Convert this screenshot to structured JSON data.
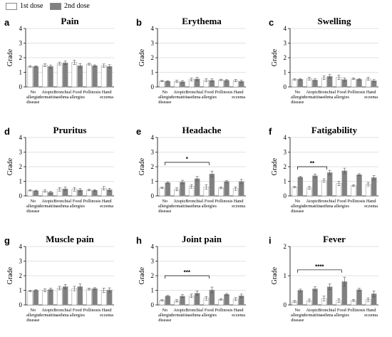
{
  "legend": {
    "dose1": {
      "label": "1st dose",
      "color": "#ffffff"
    },
    "dose2": {
      "label": "2nd dose",
      "color": "#808080"
    }
  },
  "categories": [
    "No allergic disease",
    "Atopic dermatitis",
    "Bronchial asthma",
    "Food allergies",
    "Pollinosis",
    "Hand eczema"
  ],
  "chart_data": [
    {
      "panel": "a",
      "type": "bar",
      "title": "Pain",
      "ylabel": "Grade",
      "ylim": [
        0,
        4
      ],
      "yticks": [
        0,
        1,
        2,
        3,
        4
      ],
      "categories": [
        "No allergic disease",
        "Atopic dermatitis",
        "Bronchial asthma",
        "Food allergies",
        "Pollinosis",
        "Hand eczema"
      ],
      "series": [
        {
          "name": "1st dose",
          "values": [
            1.4,
            1.48,
            1.6,
            1.68,
            1.56,
            1.45
          ],
          "err": [
            0.05,
            0.1,
            0.1,
            0.15,
            0.06,
            0.12
          ]
        },
        {
          "name": "2nd dose",
          "values": [
            1.4,
            1.4,
            1.65,
            1.45,
            1.45,
            1.4
          ],
          "err": [
            0.05,
            0.1,
            0.12,
            0.15,
            0.06,
            0.12
          ]
        }
      ]
    },
    {
      "panel": "b",
      "type": "bar",
      "title": "Erythema",
      "ylabel": "Grade",
      "ylim": [
        0,
        4
      ],
      "yticks": [
        0,
        1,
        2,
        3,
        4
      ],
      "categories": [
        "No allergic disease",
        "Atopic dermatitis",
        "Bronchial asthma",
        "Food allergies",
        "Pollinosis",
        "Hand eczema"
      ],
      "series": [
        {
          "name": "1st dose",
          "values": [
            0.4,
            0.38,
            0.5,
            0.45,
            0.48,
            0.43
          ],
          "err": [
            0.04,
            0.08,
            0.1,
            0.1,
            0.05,
            0.08
          ]
        },
        {
          "name": "2nd dose",
          "values": [
            0.38,
            0.35,
            0.55,
            0.45,
            0.45,
            0.38
          ],
          "err": [
            0.04,
            0.08,
            0.12,
            0.1,
            0.05,
            0.08
          ]
        }
      ]
    },
    {
      "panel": "c",
      "type": "bar",
      "title": "Swelling",
      "ylabel": "Grade",
      "ylim": [
        0,
        4
      ],
      "yticks": [
        0,
        1,
        2,
        3,
        4
      ],
      "categories": [
        "No allergic disease",
        "Atopic dermatitis",
        "Bronchial asthma",
        "Food allergies",
        "Pollinosis",
        "Hand eczema"
      ],
      "series": [
        {
          "name": "1st dose",
          "values": [
            0.5,
            0.57,
            0.63,
            0.65,
            0.55,
            0.55
          ],
          "err": [
            0.05,
            0.1,
            0.12,
            0.15,
            0.05,
            0.1
          ]
        },
        {
          "name": "2nd dose",
          "values": [
            0.52,
            0.47,
            0.72,
            0.5,
            0.52,
            0.42
          ],
          "err": [
            0.05,
            0.08,
            0.12,
            0.12,
            0.05,
            0.08
          ]
        }
      ]
    },
    {
      "panel": "d",
      "type": "bar",
      "title": "Pruritus",
      "ylabel": "Grade",
      "ylim": [
        0,
        4
      ],
      "yticks": [
        0,
        1,
        2,
        3,
        4
      ],
      "categories": [
        "No allergic disease",
        "Atopic dermatitis",
        "Bronchial asthma",
        "Food allergies",
        "Pollinosis",
        "Hand eczema"
      ],
      "series": [
        {
          "name": "1st dose",
          "values": [
            0.38,
            0.33,
            0.45,
            0.45,
            0.4,
            0.52
          ],
          "err": [
            0.04,
            0.08,
            0.12,
            0.12,
            0.05,
            0.12
          ]
        },
        {
          "name": "2nd dose",
          "values": [
            0.35,
            0.25,
            0.48,
            0.4,
            0.38,
            0.42
          ],
          "err": [
            0.04,
            0.06,
            0.12,
            0.1,
            0.05,
            0.1
          ]
        }
      ]
    },
    {
      "panel": "e",
      "type": "bar",
      "title": "Headache",
      "ylabel": "Grade",
      "ylim": [
        0,
        4
      ],
      "yticks": [
        0,
        1,
        2,
        3,
        4
      ],
      "categories": [
        "No allergic disease",
        "Atopic dermatitis",
        "Bronchial asthma",
        "Food allergies",
        "Pollinosis",
        "Hand eczema"
      ],
      "series": [
        {
          "name": "1st dose",
          "values": [
            0.55,
            0.45,
            0.65,
            0.62,
            0.55,
            0.5
          ],
          "err": [
            0.05,
            0.1,
            0.12,
            0.15,
            0.06,
            0.12
          ]
        },
        {
          "name": "2nd dose",
          "values": [
            0.9,
            0.95,
            1.18,
            1.5,
            0.98,
            0.98
          ],
          "err": [
            0.06,
            0.12,
            0.15,
            0.2,
            0.07,
            0.15
          ]
        }
      ],
      "brackets": [
        {
          "from": 0,
          "to": 3,
          "y": 2.3,
          "label": "*"
        }
      ]
    },
    {
      "panel": "f",
      "type": "bar",
      "title": "Fatigability",
      "ylabel": "Grade",
      "ylim": [
        0,
        4
      ],
      "yticks": [
        0,
        1,
        2,
        3,
        4
      ],
      "categories": [
        "No allergic disease",
        "Atopic dermatitis",
        "Bronchial asthma",
        "Food allergies",
        "Pollinosis",
        "Hand eczema"
      ],
      "series": [
        {
          "name": "1st dose",
          "values": [
            0.6,
            0.55,
            1.05,
            0.85,
            0.7,
            0.8
          ],
          "err": [
            0.05,
            0.1,
            0.12,
            0.15,
            0.06,
            0.12
          ]
        },
        {
          "name": "2nd dose",
          "values": [
            1.28,
            1.38,
            1.6,
            1.72,
            1.45,
            1.25
          ],
          "err": [
            0.06,
            0.12,
            0.15,
            0.18,
            0.07,
            0.15
          ]
        }
      ],
      "brackets": [
        {
          "from": 0,
          "to": 2,
          "y": 2.0,
          "label": "**"
        }
      ]
    },
    {
      "panel": "g",
      "type": "bar",
      "title": "Muscle pain",
      "ylabel": "Grade",
      "ylim": [
        0,
        4
      ],
      "yticks": [
        0,
        1,
        2,
        3,
        4
      ],
      "categories": [
        "No allergic disease",
        "Atopic dermatitis",
        "Bronchial asthma",
        "Food allergies",
        "Pollinosis",
        "Hand eczema"
      ],
      "series": [
        {
          "name": "1st dose",
          "values": [
            0.95,
            1.0,
            1.15,
            1.12,
            1.08,
            1.0
          ],
          "err": [
            0.05,
            0.1,
            0.12,
            0.15,
            0.06,
            0.15
          ]
        },
        {
          "name": "2nd dose",
          "values": [
            1.0,
            1.05,
            1.25,
            1.25,
            1.12,
            1.02
          ],
          "err": [
            0.05,
            0.1,
            0.15,
            0.18,
            0.06,
            0.15
          ]
        }
      ]
    },
    {
      "panel": "h",
      "type": "bar",
      "title": "Joint pain",
      "ylabel": "Grade",
      "ylim": [
        0,
        4
      ],
      "yticks": [
        0,
        1,
        2,
        3,
        4
      ],
      "categories": [
        "No allergic disease",
        "Atopic dermatitis",
        "Bronchial asthma",
        "Food allergies",
        "Pollinosis",
        "Hand eczema"
      ],
      "series": [
        {
          "name": "1st dose",
          "values": [
            0.32,
            0.28,
            0.62,
            0.45,
            0.38,
            0.4
          ],
          "err": [
            0.04,
            0.08,
            0.12,
            0.12,
            0.05,
            0.1
          ]
        },
        {
          "name": "2nd dose",
          "values": [
            0.6,
            0.6,
            0.8,
            1.02,
            0.72,
            0.62
          ],
          "err": [
            0.05,
            0.1,
            0.15,
            0.2,
            0.06,
            0.12
          ]
        }
      ],
      "brackets": [
        {
          "from": 0,
          "to": 3,
          "y": 2.0,
          "label": "***"
        }
      ]
    },
    {
      "panel": "i",
      "type": "bar",
      "title": "Fever",
      "ylabel": "Grade",
      "ylim": [
        0,
        2
      ],
      "yticks": [
        0,
        1,
        2
      ],
      "categories": [
        "No allergic disease",
        "Atopic dermatitis",
        "Bronchial asthma",
        "Food allergies",
        "Pollinosis",
        "Hand eczema"
      ],
      "series": [
        {
          "name": "1st dose",
          "values": [
            0.12,
            0.15,
            0.22,
            0.15,
            0.15,
            0.18
          ],
          "err": [
            0.03,
            0.05,
            0.08,
            0.06,
            0.03,
            0.06
          ]
        },
        {
          "name": "2nd dose",
          "values": [
            0.5,
            0.55,
            0.62,
            0.8,
            0.52,
            0.38
          ],
          "err": [
            0.04,
            0.07,
            0.1,
            0.15,
            0.05,
            0.1
          ]
        }
      ],
      "brackets": [
        {
          "from": 0,
          "to": 3,
          "y": 1.2,
          "label": "****"
        }
      ]
    }
  ]
}
